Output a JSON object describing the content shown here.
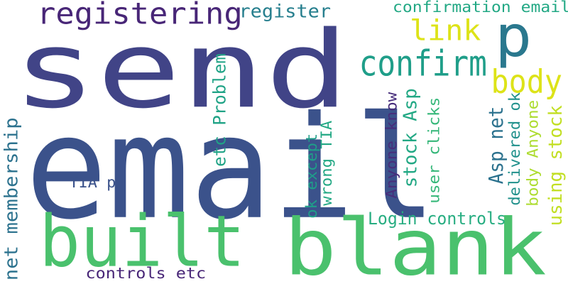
{
  "words": [
    {
      "text": "send",
      "color": "#414487"
    },
    {
      "text": "email",
      "color": "#3b528b"
    },
    {
      "text": "built",
      "color": "#4ac16d"
    },
    {
      "text": "blank",
      "color": "#4ac16d"
    },
    {
      "text": "registering",
      "color": "#482677"
    },
    {
      "text": "p",
      "color": "#2a788e"
    },
    {
      "text": "confirm",
      "color": "#1f9e89"
    },
    {
      "text": "link",
      "color": "#dde318"
    },
    {
      "text": "body",
      "color": "#dde318"
    },
    {
      "text": "register",
      "color": "#277f8e"
    },
    {
      "text": "confirmation email",
      "color": "#22a884"
    },
    {
      "text": "net membership",
      "color": "#2c728e"
    },
    {
      "text": "etc Problem",
      "color": "#20a386"
    },
    {
      "text": "stock Asp",
      "color": "#22a884"
    },
    {
      "text": "Anyone know",
      "color": "#472d7b"
    },
    {
      "text": "Asp net",
      "color": "#2c728e"
    },
    {
      "text": "using stock",
      "color": "#c2df23"
    },
    {
      "text": "body Anyone",
      "color": "#addc30"
    },
    {
      "text": "delivered ok",
      "color": "#21918c"
    },
    {
      "text": "user clicks",
      "color": "#35b779"
    },
    {
      "text": "wrong TIA",
      "color": "#22a884"
    },
    {
      "text": "ok except",
      "color": "#1f9e89"
    },
    {
      "text": "TIA p",
      "color": "#3b528b"
    },
    {
      "text": "Login controls",
      "color": "#27ad81"
    },
    {
      "text": "controls etc",
      "color": "#482677"
    }
  ]
}
